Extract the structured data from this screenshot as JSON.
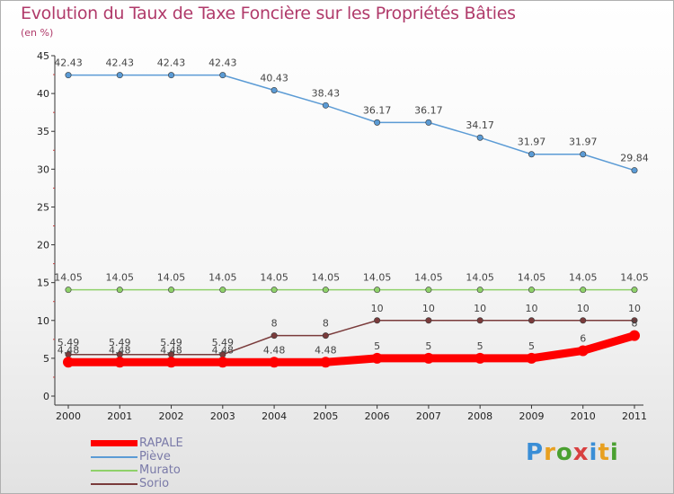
{
  "title": "Evolution du Taux de Taxe Foncière sur les Propriétés Bâties",
  "subtitle": "(en %)",
  "logo": {
    "text": "Proxiti",
    "colors": [
      "#3a8ed6",
      "#e8a020",
      "#4aa030",
      "#d84040",
      "#3a8ed6",
      "#e8a020",
      "#4aa030"
    ]
  },
  "chart_data": {
    "type": "line",
    "title": "Evolution du Taux de Taxe Foncière sur les Propriétés Bâties",
    "ylabel": "(en %)",
    "xlabel": "",
    "x": [
      "2000",
      "2001",
      "2002",
      "2003",
      "2004",
      "2005",
      "2006",
      "2007",
      "2008",
      "2009",
      "2010",
      "2011"
    ],
    "ylim": [
      0,
      45
    ],
    "yticks": [
      "0",
      "5",
      "10",
      "15",
      "20",
      "25",
      "30",
      "35",
      "40",
      "45"
    ],
    "grid": false,
    "legend_position": "bottom-left",
    "series": [
      {
        "name": "RAPALE",
        "color": "#ff0000",
        "values": [
          4.48,
          4.48,
          4.48,
          4.48,
          4.48,
          4.48,
          5,
          5,
          5,
          5,
          6,
          8
        ],
        "labels": [
          "4.48",
          "4.48",
          "4.48",
          "4.48",
          "4.48",
          "4.48",
          "5",
          "5",
          "5",
          "5",
          "6",
          "8"
        ]
      },
      {
        "name": "Piève",
        "color": "#5b9bd5",
        "values": [
          42.43,
          42.43,
          42.43,
          42.43,
          40.43,
          38.43,
          36.17,
          36.17,
          34.17,
          31.97,
          31.97,
          29.84
        ],
        "labels": [
          "42.43",
          "42.43",
          "42.43",
          "42.43",
          "40.43",
          "38.43",
          "36.17",
          "36.17",
          "34.17",
          "31.97",
          "31.97",
          "29.84"
        ]
      },
      {
        "name": "Murato",
        "color": "#8fd16a",
        "values": [
          14.05,
          14.05,
          14.05,
          14.05,
          14.05,
          14.05,
          14.05,
          14.05,
          14.05,
          14.05,
          14.05,
          14.05
        ],
        "labels": [
          "14.05",
          "14.05",
          "14.05",
          "14.05",
          "14.05",
          "14.05",
          "14.05",
          "14.05",
          "14.05",
          "14.05",
          "14.05",
          "14.05"
        ]
      },
      {
        "name": "Sorio",
        "color": "#7a3b3b",
        "values": [
          5.49,
          5.49,
          5.49,
          5.49,
          8,
          8,
          10,
          10,
          10,
          10,
          10,
          10
        ],
        "labels": [
          "5.49",
          "5.49",
          "5.49",
          "5.49",
          "8",
          "8",
          "10",
          "10",
          "10",
          "10",
          "10",
          "10"
        ]
      }
    ]
  }
}
